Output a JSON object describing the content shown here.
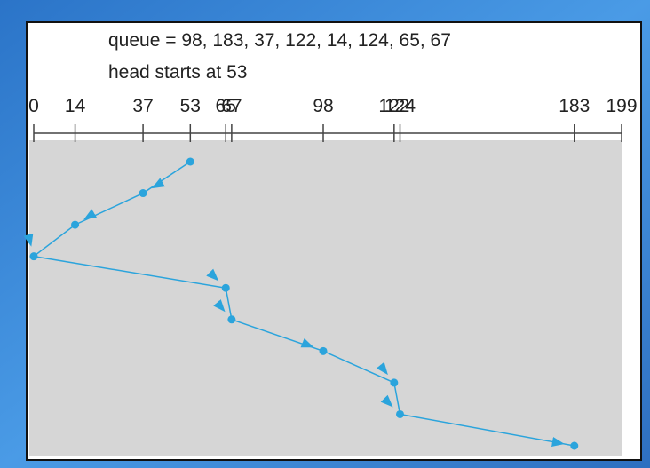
{
  "chart_data": {
    "type": "line",
    "title": "queue = 98, 183, 37, 122, 14, 124, 65, 67",
    "subtitle": "head starts at 53",
    "xlim": [
      0,
      199
    ],
    "xticks": [
      0,
      14,
      37,
      53,
      65,
      67,
      98,
      122,
      124,
      183,
      199
    ],
    "series": [
      {
        "color": "#2ba4dc",
        "values": [
          53,
          37,
          14,
          0,
          65,
          67,
          98,
          122,
          124,
          183
        ]
      }
    ]
  }
}
